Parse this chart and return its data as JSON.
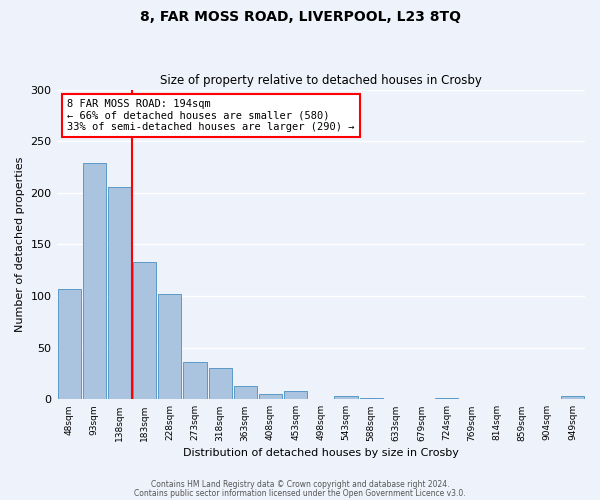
{
  "title": "8, FAR MOSS ROAD, LIVERPOOL, L23 8TQ",
  "subtitle": "Size of property relative to detached houses in Crosby",
  "xlabel": "Distribution of detached houses by size in Crosby",
  "ylabel": "Number of detached properties",
  "bar_labels": [
    "48sqm",
    "93sqm",
    "138sqm",
    "183sqm",
    "228sqm",
    "273sqm",
    "318sqm",
    "363sqm",
    "408sqm",
    "453sqm",
    "498sqm",
    "543sqm",
    "588sqm",
    "633sqm",
    "679sqm",
    "724sqm",
    "769sqm",
    "814sqm",
    "859sqm",
    "904sqm",
    "949sqm"
  ],
  "bar_values": [
    107,
    229,
    206,
    133,
    102,
    36,
    30,
    13,
    5,
    8,
    0,
    3,
    1,
    0,
    0,
    1,
    0,
    0,
    0,
    0,
    3
  ],
  "bar_color": "#aac4e0",
  "bar_edge_color": "#5a9ac8",
  "vline_x_idx": 3,
  "vline_color": "red",
  "annotation_line1": "8 FAR MOSS ROAD: 194sqm",
  "annotation_line2": "← 66% of detached houses are smaller (580)",
  "annotation_line3": "33% of semi-detached houses are larger (290) →",
  "annotation_box_color": "#ffffff",
  "annotation_box_edge": "red",
  "ylim": [
    0,
    300
  ],
  "yticks": [
    0,
    50,
    100,
    150,
    200,
    250,
    300
  ],
  "footer1": "Contains HM Land Registry data © Crown copyright and database right 2024.",
  "footer2": "Contains public sector information licensed under the Open Government Licence v3.0.",
  "bg_color": "#eef2fa",
  "grid_color": "#ffffff"
}
